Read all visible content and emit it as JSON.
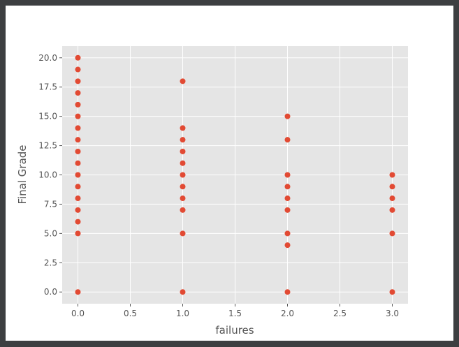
{
  "chart_data": {
    "type": "scatter",
    "title": "",
    "xlabel": "failures",
    "ylabel": "Final Grade",
    "xlim": [
      -0.15,
      3.15
    ],
    "ylim": [
      -1.0,
      21.0
    ],
    "x_ticks": [
      0.0,
      0.5,
      1.0,
      1.5,
      2.0,
      2.5,
      3.0
    ],
    "x_tick_labels": [
      "0.0",
      "0.5",
      "1.0",
      "1.5",
      "2.0",
      "2.5",
      "3.0"
    ],
    "y_ticks": [
      0.0,
      2.5,
      5.0,
      7.5,
      10.0,
      12.5,
      15.0,
      17.5,
      20.0
    ],
    "y_tick_labels": [
      "0.0",
      "2.5",
      "5.0",
      "7.5",
      "10.0",
      "12.5",
      "15.0",
      "17.5",
      "20.0"
    ],
    "grid": true,
    "style": "ggplot",
    "series": [
      {
        "color": "#e24a33",
        "points": [
          [
            0,
            0
          ],
          [
            0,
            5
          ],
          [
            0,
            6
          ],
          [
            0,
            7
          ],
          [
            0,
            8
          ],
          [
            0,
            9
          ],
          [
            0,
            10
          ],
          [
            0,
            11
          ],
          [
            0,
            12
          ],
          [
            0,
            13
          ],
          [
            0,
            14
          ],
          [
            0,
            15
          ],
          [
            0,
            16
          ],
          [
            0,
            17
          ],
          [
            0,
            18
          ],
          [
            0,
            19
          ],
          [
            0,
            20
          ],
          [
            1,
            0
          ],
          [
            1,
            5
          ],
          [
            1,
            7
          ],
          [
            1,
            8
          ],
          [
            1,
            9
          ],
          [
            1,
            10
          ],
          [
            1,
            11
          ],
          [
            1,
            12
          ],
          [
            1,
            13
          ],
          [
            1,
            14
          ],
          [
            1,
            18
          ],
          [
            2,
            0
          ],
          [
            2,
            4
          ],
          [
            2,
            5
          ],
          [
            2,
            7
          ],
          [
            2,
            8
          ],
          [
            2,
            9
          ],
          [
            2,
            10
          ],
          [
            2,
            13
          ],
          [
            2,
            15
          ],
          [
            3,
            0
          ],
          [
            3,
            5
          ],
          [
            3,
            7
          ],
          [
            3,
            8
          ],
          [
            3,
            9
          ],
          [
            3,
            10
          ]
        ]
      }
    ]
  }
}
